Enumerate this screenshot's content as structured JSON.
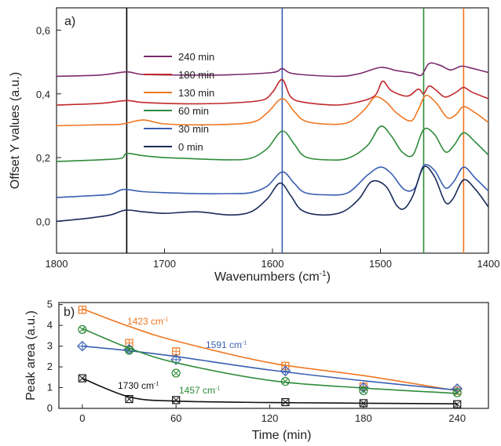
{
  "chart_data": [
    {
      "type": "line",
      "panel_label": "a)",
      "xlabel": "Wavenumbers (cm",
      "xlabel_sup": "-1",
      "xlabel_end": ")",
      "ylabel": "Offset Y values (a.u.)",
      "xlim": [
        1800,
        1400
      ],
      "ylim": [
        -0.1,
        0.67
      ],
      "x_ticks": [
        1800,
        1700,
        1600,
        1500,
        1400
      ],
      "y_ticks": [
        {
          "v": 0.0,
          "label": "0,0"
        },
        {
          "v": 0.2,
          "label": "0,2"
        },
        {
          "v": 0.4,
          "label": "0,4"
        },
        {
          "v": 0.6,
          "label": "0,6"
        }
      ],
      "vertical_lines": [
        {
          "x": 1735,
          "color": "#000000"
        },
        {
          "x": 1591,
          "color": "#3a5fb0"
        },
        {
          "x": 1460,
          "color": "#2e8b3a"
        },
        {
          "x": 1423,
          "color": "#ee7722"
        }
      ],
      "legend_placement": "left-center",
      "series": [
        {
          "name": "240 min",
          "color": "#7b2a6b",
          "offset": 0.455,
          "points": [
            [
              1800,
              0.0
            ],
            [
              1760,
              0.004
            ],
            [
              1735,
              0.014
            ],
            [
              1720,
              0.006
            ],
            [
              1680,
              0.004
            ],
            [
              1640,
              0.005
            ],
            [
              1600,
              0.012
            ],
            [
              1591,
              0.024
            ],
            [
              1580,
              0.008
            ],
            [
              1540,
              0.0
            ],
            [
              1520,
              0.008
            ],
            [
              1500,
              0.028
            ],
            [
              1485,
              0.018
            ],
            [
              1470,
              0.01
            ],
            [
              1462,
              0.004
            ],
            [
              1455,
              0.04
            ],
            [
              1445,
              0.035
            ],
            [
              1435,
              0.02
            ],
            [
              1425,
              0.032
            ],
            [
              1415,
              0.025
            ],
            [
              1400,
              0.012
            ]
          ]
        },
        {
          "name": "180 min",
          "color": "#c0282c",
          "offset": 0.365,
          "points": [
            [
              1800,
              0.0
            ],
            [
              1760,
              0.005
            ],
            [
              1735,
              0.014
            ],
            [
              1720,
              0.008
            ],
            [
              1680,
              0.004
            ],
            [
              1640,
              0.006
            ],
            [
              1610,
              0.015
            ],
            [
              1600,
              0.04
            ],
            [
              1591,
              0.08
            ],
            [
              1583,
              0.025
            ],
            [
              1570,
              0.008
            ],
            [
              1540,
              0.0
            ],
            [
              1520,
              0.01
            ],
            [
              1505,
              0.03
            ],
            [
              1498,
              0.075
            ],
            [
              1490,
              0.045
            ],
            [
              1475,
              0.028
            ],
            [
              1465,
              0.05
            ],
            [
              1460,
              0.035
            ],
            [
              1455,
              0.06
            ],
            [
              1448,
              0.045
            ],
            [
              1440,
              0.025
            ],
            [
              1430,
              0.04
            ],
            [
              1423,
              0.055
            ],
            [
              1415,
              0.04
            ],
            [
              1400,
              0.02
            ]
          ]
        },
        {
          "name": "130 min",
          "color": "#ee7722",
          "offset": 0.3,
          "points": [
            [
              1800,
              0.0
            ],
            [
              1760,
              0.003
            ],
            [
              1740,
              0.005
            ],
            [
              1720,
              0.018
            ],
            [
              1700,
              0.006
            ],
            [
              1660,
              0.003
            ],
            [
              1620,
              0.01
            ],
            [
              1605,
              0.04
            ],
            [
              1591,
              0.085
            ],
            [
              1580,
              0.045
            ],
            [
              1570,
              0.015
            ],
            [
              1550,
              0.005
            ],
            [
              1530,
              0.01
            ],
            [
              1515,
              0.05
            ],
            [
              1505,
              0.09
            ],
            [
              1495,
              0.075
            ],
            [
              1485,
              0.04
            ],
            [
              1472,
              0.015
            ],
            [
              1465,
              0.05
            ],
            [
              1458,
              0.095
            ],
            [
              1448,
              0.07
            ],
            [
              1438,
              0.025
            ],
            [
              1430,
              0.035
            ],
            [
              1423,
              0.06
            ],
            [
              1412,
              0.04
            ],
            [
              1400,
              0.01
            ]
          ]
        },
        {
          "name": "60 min",
          "color": "#2e8b3a",
          "offset": 0.188,
          "points": [
            [
              1800,
              0.0
            ],
            [
              1760,
              0.005
            ],
            [
              1740,
              0.01
            ],
            [
              1735,
              0.025
            ],
            [
              1720,
              0.018
            ],
            [
              1700,
              0.012
            ],
            [
              1670,
              0.008
            ],
            [
              1640,
              0.005
            ],
            [
              1620,
              0.01
            ],
            [
              1605,
              0.04
            ],
            [
              1591,
              0.095
            ],
            [
              1580,
              0.055
            ],
            [
              1570,
              0.015
            ],
            [
              1550,
              0.005
            ],
            [
              1530,
              0.01
            ],
            [
              1512,
              0.05
            ],
            [
              1500,
              0.11
            ],
            [
              1490,
              0.08
            ],
            [
              1480,
              0.03
            ],
            [
              1470,
              0.02
            ],
            [
              1460,
              0.1
            ],
            [
              1450,
              0.085
            ],
            [
              1440,
              0.03
            ],
            [
              1432,
              0.05
            ],
            [
              1423,
              0.09
            ],
            [
              1412,
              0.06
            ],
            [
              1400,
              0.02
            ]
          ]
        },
        {
          "name": "30 min",
          "color": "#3a5fb0",
          "offset": 0.075,
          "points": [
            [
              1800,
              0.0
            ],
            [
              1770,
              0.005
            ],
            [
              1750,
              0.01
            ],
            [
              1738,
              0.025
            ],
            [
              1720,
              0.018
            ],
            [
              1700,
              0.015
            ],
            [
              1670,
              0.012
            ],
            [
              1640,
              0.012
            ],
            [
              1620,
              0.015
            ],
            [
              1605,
              0.035
            ],
            [
              1591,
              0.08
            ],
            [
              1580,
              0.045
            ],
            [
              1570,
              0.015
            ],
            [
              1550,
              0.008
            ],
            [
              1530,
              0.015
            ],
            [
              1512,
              0.07
            ],
            [
              1500,
              0.095
            ],
            [
              1490,
              0.075
            ],
            [
              1478,
              0.025
            ],
            [
              1468,
              0.03
            ],
            [
              1460,
              0.1
            ],
            [
              1450,
              0.085
            ],
            [
              1440,
              0.03
            ],
            [
              1432,
              0.05
            ],
            [
              1423,
              0.095
            ],
            [
              1412,
              0.06
            ],
            [
              1400,
              0.02
            ]
          ]
        },
        {
          "name": "0 min",
          "color": "#1a2a5a",
          "offset": 0.0,
          "points": [
            [
              1800,
              0.0
            ],
            [
              1770,
              0.01
            ],
            [
              1750,
              0.02
            ],
            [
              1736,
              0.035
            ],
            [
              1720,
              0.03
            ],
            [
              1700,
              0.025
            ],
            [
              1670,
              0.03
            ],
            [
              1640,
              0.02
            ],
            [
              1620,
              0.03
            ],
            [
              1605,
              0.07
            ],
            [
              1593,
              0.12
            ],
            [
              1583,
              0.08
            ],
            [
              1573,
              0.035
            ],
            [
              1555,
              0.02
            ],
            [
              1535,
              0.03
            ],
            [
              1520,
              0.07
            ],
            [
              1508,
              0.125
            ],
            [
              1495,
              0.11
            ],
            [
              1485,
              0.05
            ],
            [
              1478,
              0.04
            ],
            [
              1470,
              0.08
            ],
            [
              1460,
              0.17
            ],
            [
              1450,
              0.14
            ],
            [
              1440,
              0.06
            ],
            [
              1433,
              0.07
            ],
            [
              1423,
              0.13
            ],
            [
              1412,
              0.1
            ],
            [
              1400,
              0.045
            ]
          ]
        }
      ]
    },
    {
      "type": "scatter",
      "panel_label": "b)",
      "xlabel": "Time (min)",
      "ylabel": "Peak area (a.u.)",
      "xlim": [
        -15,
        260
      ],
      "ylim": [
        0,
        5.1
      ],
      "x_ticks": [
        0,
        60,
        120,
        180,
        240
      ],
      "y_ticks": [
        0,
        1,
        2,
        3,
        4,
        5
      ],
      "x": [
        0,
        30,
        60,
        130,
        180,
        240
      ],
      "series": [
        {
          "name": "1423 cm",
          "name_sup": "-1",
          "color": "#ee7722",
          "marker": "square-plus",
          "values": [
            4.75,
            3.15,
            2.75,
            2.05,
            1.05,
            0.85
          ],
          "fit": [
            4.8,
            3.95,
            3.25,
            2.2,
            1.58,
            0.85
          ]
        },
        {
          "name": "1591 cm",
          "name_sup": "-1",
          "color": "#3a5fb0",
          "marker": "diamond-plus",
          "values": [
            3.0,
            2.85,
            2.35,
            1.8,
            1.0,
            0.95
          ],
          "fit": [
            3.0,
            2.78,
            2.5,
            1.85,
            1.33,
            0.88
          ]
        },
        {
          "name": "1457 cm",
          "name_sup": "-1",
          "color": "#2e8b3a",
          "marker": "circle-x",
          "values": [
            3.8,
            2.8,
            1.7,
            1.3,
            0.85,
            0.75
          ],
          "fit": [
            3.85,
            2.9,
            2.2,
            1.35,
            0.98,
            0.72
          ]
        },
        {
          "name": "1730 cm",
          "name_sup": "-1",
          "color": "#111111",
          "marker": "square-x",
          "values": [
            1.45,
            0.45,
            0.4,
            0.3,
            0.25,
            0.2
          ],
          "fit": [
            1.45,
            0.55,
            0.35,
            0.28,
            0.25,
            0.22
          ]
        }
      ]
    }
  ]
}
